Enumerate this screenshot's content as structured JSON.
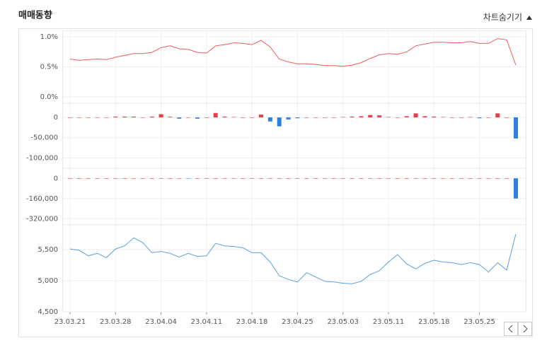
{
  "title": "매매동향",
  "toggle": "차트숨기기",
  "chart_data": [
    {
      "type": "line",
      "color": "#f05a5a",
      "values": [
        0.63,
        0.61,
        0.62,
        0.63,
        0.62,
        0.66,
        0.69,
        0.72,
        0.72,
        0.74,
        0.82,
        0.85,
        0.8,
        0.79,
        0.74,
        0.73,
        0.85,
        0.87,
        0.9,
        0.89,
        0.87,
        0.94,
        0.83,
        0.63,
        0.58,
        0.55,
        0.55,
        0.54,
        0.52,
        0.52,
        0.51,
        0.53,
        0.57,
        0.64,
        0.7,
        0.72,
        0.71,
        0.75,
        0.85,
        0.88,
        0.91,
        0.91,
        0.9,
        0.9,
        0.92,
        0.89,
        0.89,
        0.97,
        0.95,
        0.53
      ],
      "ylim": [
        -0.1,
        1.1
      ],
      "yticks": [
        {
          "value": 1.0,
          "label": "1.0%"
        },
        {
          "value": 0.5,
          "label": "0.5%"
        },
        {
          "value": 0.0,
          "label": "0.0%"
        }
      ]
    },
    {
      "type": "bar",
      "up_color": "#e8404a",
      "down_color": "#2d7fe0",
      "values": [
        0,
        0,
        0,
        0,
        0,
        2000,
        2000,
        2000,
        0,
        2000,
        8000,
        1500,
        -3000,
        0,
        -3000,
        0,
        11000,
        2000,
        1000,
        0,
        0,
        7000,
        -10000,
        -22000,
        -5000,
        -2000,
        0,
        0,
        0,
        0,
        1000,
        2000,
        3000,
        6000,
        5000,
        1000,
        0,
        3000,
        10000,
        3000,
        2000,
        1000,
        0,
        0,
        1000,
        -2000,
        0,
        10000,
        0,
        -52000
      ],
      "ylim": [
        -115000,
        35000
      ],
      "yticks": [
        0,
        {
          "value": -50000,
          "label": "-50,000"
        },
        {
          "value": -100000,
          "label": "-100,000"
        }
      ]
    },
    {
      "type": "bar",
      "up_color": "#e8404a",
      "down_color": "#2d7fe0",
      "values": [
        0,
        0,
        0,
        0,
        0,
        0,
        0,
        0,
        0,
        0,
        0,
        0,
        0,
        -1000,
        0,
        0,
        0,
        0,
        0,
        0,
        0,
        0,
        0,
        0,
        0,
        0,
        0,
        0,
        0,
        0,
        0,
        0,
        0,
        0,
        0,
        0,
        0,
        0,
        0,
        0,
        0,
        0,
        0,
        0,
        0,
        0,
        0,
        0,
        0,
        -160000
      ],
      "ylim": [
        -350000,
        80000
      ],
      "yticks": [
        0,
        {
          "value": -160000,
          "label": "-160,000"
        },
        {
          "value": -320000,
          "label": "-320,000"
        }
      ]
    },
    {
      "type": "line",
      "color": "#5aa0e0",
      "categories": [
        "23.03.21",
        null,
        null,
        null,
        null,
        "23.03.28",
        null,
        null,
        null,
        null,
        "23.04.04",
        null,
        null,
        null,
        null,
        "23.04.11",
        null,
        null,
        null,
        null,
        "23.04.18",
        null,
        null,
        null,
        null,
        "23.04.25",
        null,
        null,
        null,
        null,
        "23.05.03",
        null,
        null,
        null,
        null,
        "23.05.11",
        null,
        null,
        null,
        null,
        "23.05.18",
        null,
        null,
        null,
        null,
        "23.05.25",
        null,
        null,
        null,
        null
      ],
      "values": [
        5510,
        5490,
        5400,
        5440,
        5370,
        5510,
        5560,
        5690,
        5610,
        5450,
        5470,
        5440,
        5380,
        5440,
        5390,
        5400,
        5600,
        5560,
        5550,
        5530,
        5450,
        5450,
        5300,
        5080,
        5020,
        4980,
        5130,
        5060,
        4990,
        4980,
        4960,
        4950,
        4990,
        5100,
        5160,
        5300,
        5420,
        5270,
        5190,
        5280,
        5330,
        5300,
        5290,
        5260,
        5290,
        5260,
        5140,
        5290,
        5170,
        5750
      ],
      "ylim": [
        4500,
        5900
      ],
      "yticks": [
        {
          "value": 5500,
          "label": "5,500"
        },
        {
          "value": 5000,
          "label": "5,000"
        },
        {
          "value": 4500,
          "label": "4,500"
        }
      ]
    }
  ]
}
